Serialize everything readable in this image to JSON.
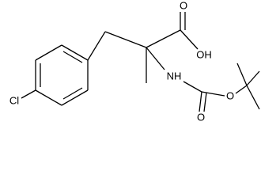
{
  "atoms": [
    {
      "label": "O"
    },
    {
      "label": "OH"
    },
    {
      "label": "Cl"
    },
    {
      "label": "NH"
    },
    {
      "label": "O"
    },
    {
      "label": "O"
    }
  ]
}
